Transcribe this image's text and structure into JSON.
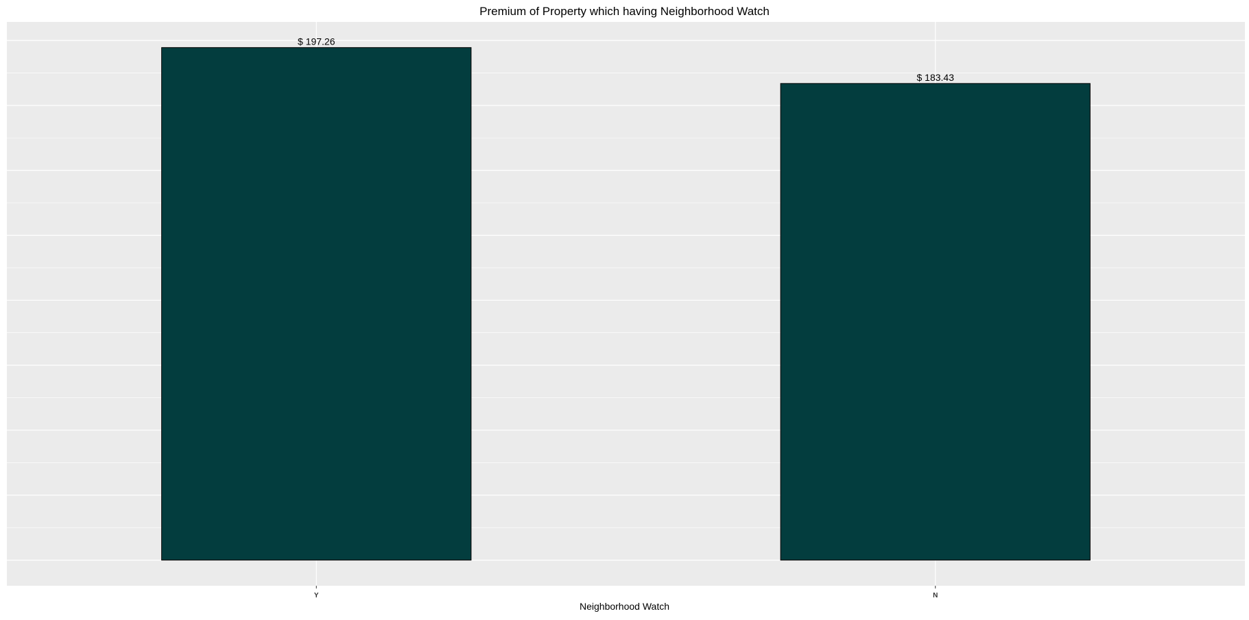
{
  "chart_data": {
    "type": "bar",
    "title": "Premium of Property which having Neighborhood Watch",
    "xlabel": "Neighborhood Watch",
    "ylabel": "",
    "categories": [
      "Y",
      "N"
    ],
    "values": [
      197.26,
      183.43
    ],
    "data_labels": [
      "$ 197.26",
      "$ 183.43"
    ],
    "ylim": [
      -9.863,
      207.123
    ],
    "y_gridline_values": [
      0,
      25,
      50,
      75,
      100,
      125,
      150,
      175,
      200
    ],
    "y_tick_labels_shown": false,
    "grid": true,
    "legend": "none",
    "colors": {
      "panel_background": "#ebebeb",
      "grid_line": "#ffffff",
      "bar_fill": "#033d3e",
      "bar_stroke": "#000000",
      "text": "#000000",
      "tick_label": "#333333"
    }
  }
}
